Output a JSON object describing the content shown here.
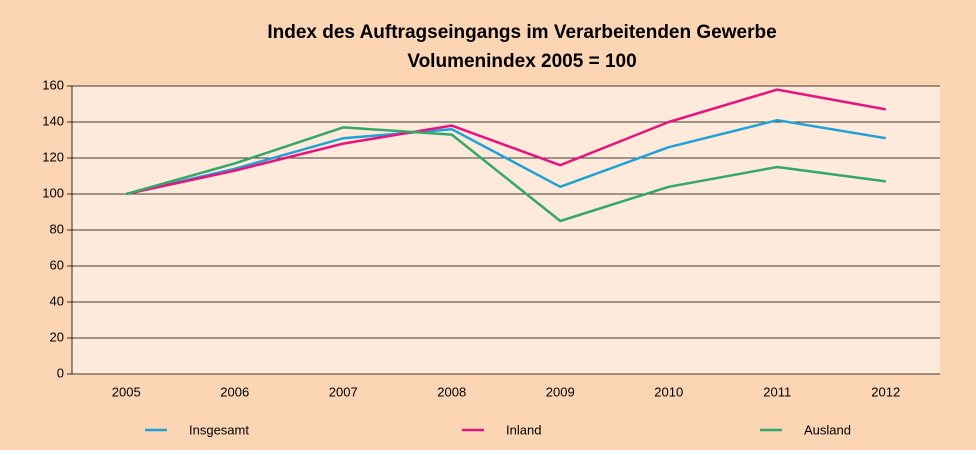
{
  "chart_data": {
    "type": "line",
    "title": "Index des Auftragseingangs im Verarbeitenden Gewerbe",
    "subtitle": "Volumenindex 2005 = 100",
    "categories": [
      "2005",
      "2006",
      "2007",
      "2008",
      "2009",
      "2010",
      "2011",
      "2012"
    ],
    "series": [
      {
        "name": "Insgesamt",
        "color": "#1fa3d6",
        "values": [
          100,
          114,
          131,
          136,
          104,
          126,
          141,
          131
        ]
      },
      {
        "name": "Inland",
        "color": "#e3157f",
        "values": [
          100,
          113,
          128,
          138,
          116,
          140,
          158,
          147
        ]
      },
      {
        "name": "Ausland",
        "color": "#34a76b",
        "values": [
          100,
          117,
          137,
          133,
          85,
          104,
          115,
          107
        ]
      }
    ],
    "ylim": [
      0,
      160
    ],
    "yticks": [
      0,
      20,
      40,
      60,
      80,
      100,
      120,
      140,
      160
    ],
    "grid": true
  }
}
